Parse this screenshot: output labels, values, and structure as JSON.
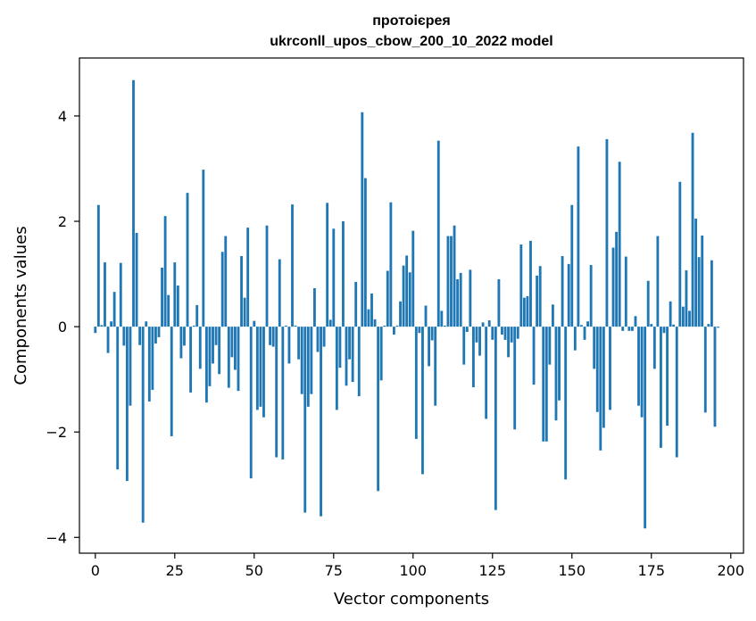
{
  "chart_data": {
    "type": "bar",
    "title": "протоієрея",
    "subtitle": "ukrconll_upos_cbow_200_10_2022 model",
    "xlabel": "Vector components",
    "ylabel": "Components values",
    "xlim": [
      -5,
      204
    ],
    "ylim": [
      -4.3,
      5.1
    ],
    "xticks": [
      0,
      25,
      50,
      75,
      100,
      125,
      150,
      175,
      200
    ],
    "yticks": [
      -4,
      -2,
      0,
      2,
      4
    ],
    "ytick_labels": [
      "−4",
      "−2",
      "0",
      "2",
      "4"
    ],
    "bar_color": "#1f77b4",
    "grid": false,
    "values": [
      -0.12,
      2.31,
      0.03,
      1.22,
      -0.5,
      0.1,
      0.66,
      -2.71,
      1.21,
      -0.36,
      -2.93,
      -1.5,
      4.68,
      1.78,
      -0.35,
      -3.72,
      0.1,
      -1.42,
      -1.2,
      -0.32,
      -0.2,
      1.12,
      2.1,
      0.6,
      -2.08,
      1.22,
      0.78,
      -0.6,
      -0.36,
      2.54,
      -1.25,
      0.02,
      0.41,
      -0.8,
      2.98,
      -1.44,
      -1.13,
      -0.7,
      -0.35,
      -0.9,
      1.42,
      1.72,
      -1.16,
      -0.58,
      -0.82,
      -1.22,
      1.34,
      0.55,
      1.88,
      -2.88,
      0.11,
      -1.58,
      -1.52,
      -1.72,
      1.92,
      -0.35,
      -0.38,
      -2.48,
      1.28,
      -2.52,
      0.02,
      -0.7,
      2.32,
      0.02,
      -0.62,
      -1.28,
      -3.53,
      -1.52,
      -1.28,
      0.73,
      -0.48,
      -3.6,
      -0.38,
      2.35,
      0.13,
      1.86,
      -1.58,
      -0.78,
      2.0,
      -1.12,
      -0.62,
      -1.05,
      0.85,
      -1.32,
      4.07,
      2.82,
      0.33,
      0.63,
      0.14,
      -3.12,
      -1.02,
      0.02,
      1.06,
      2.36,
      -0.15,
      0.02,
      0.48,
      1.16,
      1.35,
      1.03,
      1.82,
      -2.13,
      -0.12,
      -2.8,
      0.4,
      -0.75,
      -0.26,
      -1.5,
      3.53,
      0.3,
      0.02,
      1.72,
      1.72,
      1.92,
      0.9,
      1.02,
      -0.72,
      -0.1,
      1.08,
      -1.15,
      -0.3,
      -0.55,
      0.08,
      -1.75,
      0.12,
      -0.25,
      -3.48,
      0.9,
      -0.15,
      -0.25,
      -0.58,
      -0.3,
      -1.95,
      -0.23,
      1.56,
      0.55,
      0.58,
      1.63,
      -1.1,
      0.97,
      1.15,
      -2.18,
      -2.18,
      -0.72,
      0.42,
      -1.78,
      -1.4,
      1.34,
      -2.9,
      1.19,
      2.31,
      -0.45,
      3.42,
      0.03,
      -0.25,
      0.1,
      1.17,
      -0.8,
      -1.62,
      -2.35,
      -1.92,
      3.56,
      -1.58,
      1.5,
      1.8,
      3.13,
      -0.08,
      1.33,
      -0.08,
      -0.08,
      0.2,
      -1.5,
      -1.72,
      -3.83,
      0.87,
      0.05,
      -0.8,
      1.72,
      -2.3,
      -0.12,
      -1.88,
      0.48,
      0.04,
      -2.48,
      2.75,
      0.38,
      1.07,
      0.3,
      3.68,
      2.05,
      1.32,
      1.73,
      -1.63,
      0.05,
      1.26,
      -1.9,
      -0.02
    ]
  }
}
